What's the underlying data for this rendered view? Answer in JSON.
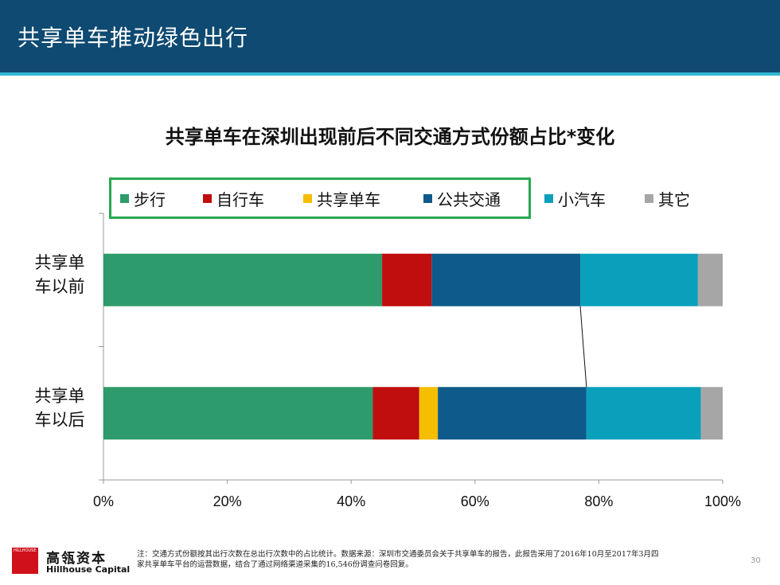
{
  "slide": {
    "title": "共享单车推动绿色出行",
    "page_number": "30"
  },
  "brand": {
    "mark_text": "HILLHOUSE",
    "name_cn": "高瓴资本",
    "name_en": "Hillhouse Capital"
  },
  "footnote": "注：交通方式份额按其出行次数在总出行次数中的占比统计。数据来源：深圳市交通委员会关于共享单车的报告，此报告采用了2016年10月至2017年3月四家共享单车平台的运营数据，结合了通过网络渠道采集的16,546份调查问卷回复。",
  "chart_data": {
    "type": "bar",
    "orientation": "horizontal",
    "stacked": true,
    "title": "共享单车在深圳出现前后不同交通方式份额占比*变化",
    "categories": [
      "共享单车以前",
      "共享单车以后"
    ],
    "category_lines": [
      [
        "共享单",
        "车以前"
      ],
      [
        "共享单",
        "车以后"
      ]
    ],
    "series": [
      {
        "name": "步行",
        "color": "#2e9b6c",
        "values": [
          45,
          43.5
        ]
      },
      {
        "name": "自行车",
        "color": "#c00d0d",
        "values": [
          8,
          7.5
        ]
      },
      {
        "name": "共享单车",
        "color": "#f5be00",
        "values": [
          0,
          3
        ]
      },
      {
        "name": "公共交通",
        "color": "#0e5a8a",
        "values": [
          24,
          24
        ]
      },
      {
        "name": "小汽车",
        "color": "#0aa0bc",
        "values": [
          19,
          18.5
        ]
      },
      {
        "name": "其它",
        "color": "#a6a6a6",
        "values": [
          4,
          3.5
        ]
      }
    ],
    "xlim": [
      0,
      100
    ],
    "x_ticks": [
      "0%",
      "20%",
      "40%",
      "60%",
      "80%",
      "100%"
    ],
    "legend_position": "top",
    "grid": false
  }
}
